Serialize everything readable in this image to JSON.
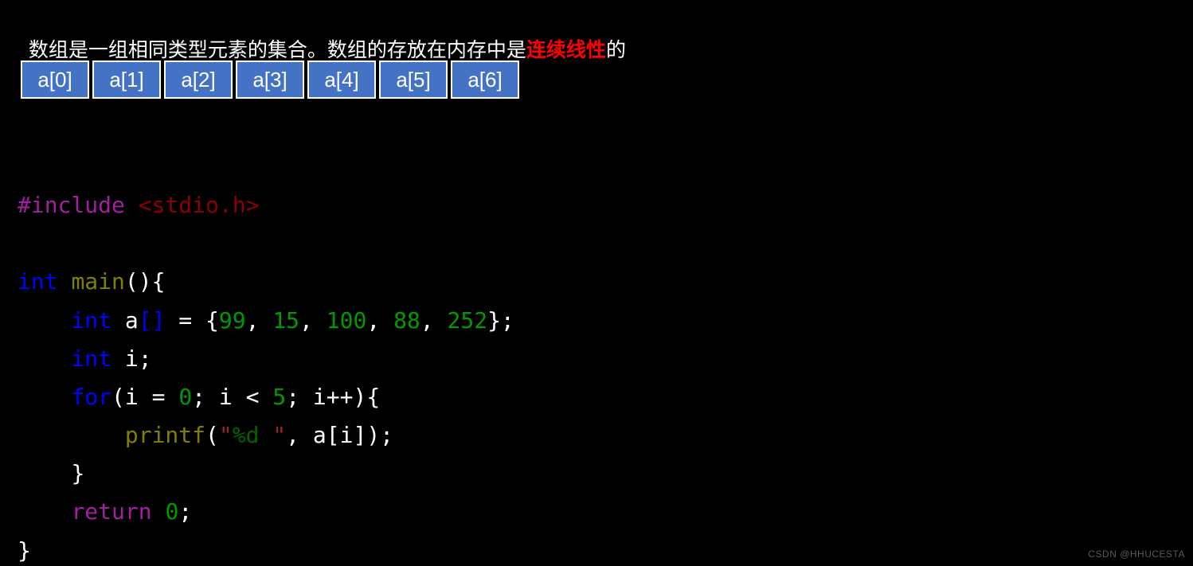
{
  "heading": {
    "pre": "数组是一组相同类型元素的集合。数组的存放在内存中是",
    "hl": "连续线性",
    "post": "的"
  },
  "array_cells": [
    "a[0]",
    "a[1]",
    "a[2]",
    "a[3]",
    "a[4]",
    "a[5]",
    "a[6]"
  ],
  "code": {
    "l1": {
      "preproc": "#include",
      "sp": " ",
      "header": "<stdio.h>"
    },
    "l2": "",
    "l3": {
      "kw1": "int",
      "sp1": " ",
      "fn": "main",
      "tail": "(){"
    },
    "l4": {
      "indent": "    ",
      "kw": "int",
      "txt1": " a",
      "br": "[]",
      "txt2": " = {",
      "n1": "99",
      "c1": ", ",
      "n2": "15",
      "c2": ", ",
      "n3": "100",
      "c3": ", ",
      "n4": "88",
      "c4": ", ",
      "n5": "252",
      "tail": "};"
    },
    "l5": {
      "indent": "    ",
      "kw": "int",
      "tail": " i;"
    },
    "l6": {
      "indent": "    ",
      "kw": "for",
      "txt1": "(i = ",
      "n1": "0",
      "txt2": "; i < ",
      "n2": "5",
      "txt3": "; i++){"
    },
    "l7": {
      "indent": "        ",
      "fn": "printf",
      "p1": "(",
      "q1": "\"",
      "fmt": "%d",
      "q2": " \"",
      "txt": ", a[i]);"
    },
    "l8": {
      "indent": "    ",
      "txt": "}"
    },
    "l9": {
      "indent": "    ",
      "kw": "return",
      "sp": " ",
      "n": "0",
      "tail": ";"
    },
    "l10": "}"
  },
  "watermark": "CSDN @HHUCESTA",
  "colors": {
    "bg": "#000000",
    "cell_bg": "#4472c4",
    "cell_border": "#ffffff",
    "highlight": "#ff0000",
    "preproc": "#a020a0",
    "header": "#8b0000",
    "keyword": "#0000ff",
    "func": "#808000",
    "number": "#009900",
    "string": "#9b2323",
    "fmt": "#006400",
    "text": "#ffffff"
  }
}
